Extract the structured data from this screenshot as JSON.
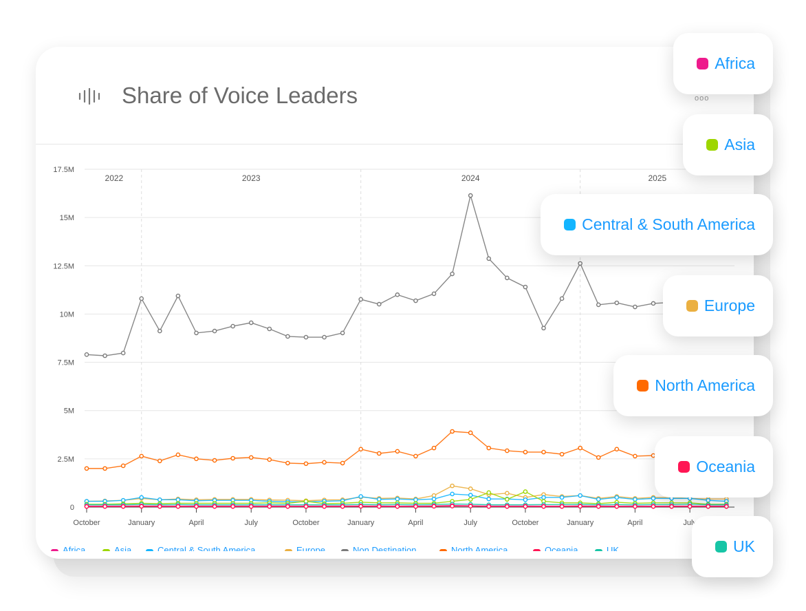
{
  "card": {
    "title": "Share of Voice Leaders",
    "title_icon": "sound-wave-icon",
    "more_icon": "ellipsis-icon",
    "more_label": "ooo"
  },
  "colors": {
    "text_blue": "#1a9bff"
  },
  "chart_data": {
    "type": "line",
    "title": "Share of Voice Leaders",
    "xlabel": "",
    "ylabel": "",
    "ylim": [
      0,
      17500000
    ],
    "yticks": [
      "0",
      "2.5M",
      "5M",
      "7.5M",
      "10M",
      "12.5M",
      "15M",
      "17.5M"
    ],
    "ytick_values": [
      0,
      2.5,
      5,
      7.5,
      10,
      12.5,
      15,
      17.5
    ],
    "y_unit": "M",
    "grid": true,
    "legend_position": "bottom",
    "year_labels": [
      "2022",
      "2023",
      "2024",
      "2025"
    ],
    "xticks": [
      "October",
      "January",
      "April",
      "July",
      "October",
      "January",
      "April",
      "July",
      "October",
      "January",
      "April",
      "July"
    ],
    "x": [
      "2022-10",
      "2022-11",
      "2022-12",
      "2023-01",
      "2023-02",
      "2023-03",
      "2023-04",
      "2023-05",
      "2023-06",
      "2023-07",
      "2023-08",
      "2023-09",
      "2023-10",
      "2023-11",
      "2023-12",
      "2024-01",
      "2024-02",
      "2024-03",
      "2024-04",
      "2024-05",
      "2024-06",
      "2024-07",
      "2024-08",
      "2024-09",
      "2024-10",
      "2024-11",
      "2024-12",
      "2025-01",
      "2025-02",
      "2025-03",
      "2025-04",
      "2025-05",
      "2025-06",
      "2025-07",
      "2025-08",
      "2025-09"
    ],
    "series": [
      {
        "name": "Africa",
        "color": "#ee1a8c",
        "values": [
          0.05,
          0.05,
          0.05,
          0.06,
          0.05,
          0.05,
          0.05,
          0.05,
          0.05,
          0.05,
          0.05,
          0.05,
          0.05,
          0.05,
          0.05,
          0.06,
          0.05,
          0.05,
          0.05,
          0.06,
          0.08,
          0.07,
          0.05,
          0.05,
          0.05,
          0.05,
          0.05,
          0.06,
          0.05,
          0.05,
          0.05,
          0.05,
          0.05,
          0.05,
          0.05,
          0.05
        ]
      },
      {
        "name": "Asia",
        "color": "#9dd600",
        "values": [
          0.15,
          0.15,
          0.17,
          0.2,
          0.18,
          0.2,
          0.2,
          0.2,
          0.2,
          0.2,
          0.22,
          0.2,
          0.3,
          0.18,
          0.2,
          0.25,
          0.22,
          0.22,
          0.2,
          0.2,
          0.3,
          0.4,
          0.75,
          0.4,
          0.8,
          0.3,
          0.22,
          0.22,
          0.18,
          0.25,
          0.2,
          0.22,
          0.22,
          0.22,
          0.15,
          0.15
        ]
      },
      {
        "name": "Central & South America",
        "color": "#13b5ff",
        "values": [
          0.3,
          0.3,
          0.35,
          0.5,
          0.38,
          0.38,
          0.33,
          0.35,
          0.35,
          0.35,
          0.3,
          0.28,
          0.28,
          0.3,
          0.33,
          0.55,
          0.4,
          0.42,
          0.38,
          0.42,
          0.68,
          0.62,
          0.42,
          0.42,
          0.38,
          0.5,
          0.5,
          0.6,
          0.4,
          0.5,
          0.4,
          0.45,
          0.45,
          0.45,
          0.35,
          0.3
        ]
      },
      {
        "name": "Europe",
        "color": "#ebb041",
        "values": [
          0.3,
          0.32,
          0.35,
          0.45,
          0.38,
          0.42,
          0.38,
          0.4,
          0.4,
          0.4,
          0.37,
          0.36,
          0.33,
          0.37,
          0.38,
          0.52,
          0.45,
          0.47,
          0.42,
          0.6,
          1.1,
          0.95,
          0.65,
          0.72,
          0.5,
          0.65,
          0.55,
          0.6,
          0.45,
          0.55,
          0.45,
          0.5,
          0.5,
          0.45,
          0.42,
          0.42
        ]
      },
      {
        "name": "Non Destination",
        "color": "#7a7a7a",
        "values": [
          7.9,
          7.84,
          7.98,
          10.8,
          9.12,
          10.94,
          9.02,
          9.12,
          9.37,
          9.55,
          9.23,
          8.84,
          8.8,
          8.8,
          9.02,
          10.76,
          10.51,
          11.0,
          10.69,
          11.05,
          12.08,
          16.14,
          12.87,
          11.87,
          11.4,
          9.27,
          10.8,
          12.62,
          10.48,
          10.58,
          10.37,
          10.55,
          10.6,
          10.5,
          10.4,
          10.5
        ]
      },
      {
        "name": "North America",
        "color": "#ff6a00",
        "values": [
          2.0,
          2.0,
          2.14,
          2.64,
          2.39,
          2.71,
          2.5,
          2.42,
          2.53,
          2.57,
          2.46,
          2.28,
          2.25,
          2.32,
          2.28,
          3.0,
          2.78,
          2.89,
          2.64,
          3.06,
          3.92,
          3.85,
          3.06,
          2.92,
          2.85,
          2.85,
          2.74,
          3.06,
          2.57,
          3.0,
          2.64,
          2.67,
          2.7,
          2.6,
          2.7,
          2.6
        ]
      },
      {
        "name": "Oceania",
        "color": "#ff1654",
        "values": [
          0.03,
          0.03,
          0.03,
          0.04,
          0.03,
          0.03,
          0.03,
          0.03,
          0.03,
          0.03,
          0.03,
          0.03,
          0.03,
          0.03,
          0.03,
          0.04,
          0.03,
          0.03,
          0.03,
          0.04,
          0.05,
          0.05,
          0.03,
          0.03,
          0.03,
          0.03,
          0.03,
          0.04,
          0.03,
          0.03,
          0.03,
          0.03,
          0.03,
          0.03,
          0.03,
          0.03
        ]
      },
      {
        "name": "UK",
        "color": "#17c5a6",
        "values": [
          0.12,
          0.12,
          0.12,
          0.14,
          0.12,
          0.13,
          0.12,
          0.12,
          0.12,
          0.12,
          0.12,
          0.12,
          0.12,
          0.12,
          0.12,
          0.14,
          0.12,
          0.13,
          0.12,
          0.13,
          0.16,
          0.15,
          0.12,
          0.12,
          0.12,
          0.13,
          0.13,
          0.14,
          0.12,
          0.13,
          0.12,
          0.13,
          0.13,
          0.15,
          0.12,
          0.12
        ]
      }
    ]
  },
  "popups": [
    {
      "label": "Africa",
      "color": "#ee1a8c"
    },
    {
      "label": "Asia",
      "color": "#9dd600"
    },
    {
      "label": "Central & South America",
      "color": "#13b5ff"
    },
    {
      "label": "Europe",
      "color": "#ebb041"
    },
    {
      "label": "North America",
      "color": "#ff6a00"
    },
    {
      "label": "Oceania",
      "color": "#ff1654"
    },
    {
      "label": "UK",
      "color": "#17c5a6"
    }
  ]
}
